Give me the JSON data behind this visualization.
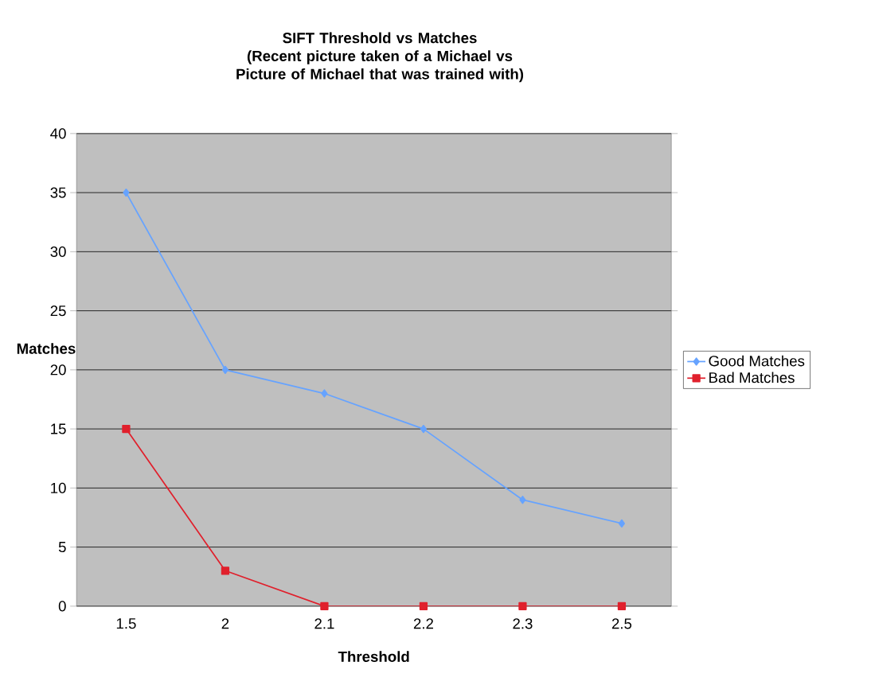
{
  "chart_data": {
    "type": "line",
    "title": "SIFT Threshold vs Matches",
    "subtitle": "(Recent picture taken of a Michael vs Picture of Michael that was trained with)",
    "xlabel": "Threshold",
    "ylabel": "Matches",
    "categories": [
      "1.5",
      "2",
      "2.1",
      "2.2",
      "2.3",
      "2.5"
    ],
    "series": [
      {
        "name": "Good Matches",
        "color": "#66a3ff",
        "marker": "diamond",
        "values": [
          35,
          20,
          18,
          15,
          9,
          7
        ]
      },
      {
        "name": "Bad Matches",
        "color": "#e0202c",
        "marker": "square",
        "values": [
          15,
          3,
          0,
          0,
          0,
          0
        ]
      }
    ],
    "ylim": [
      0,
      40
    ],
    "yticks": [
      0,
      5,
      10,
      15,
      20,
      25,
      30,
      35,
      40
    ],
    "grid": "y",
    "legend": "right"
  }
}
